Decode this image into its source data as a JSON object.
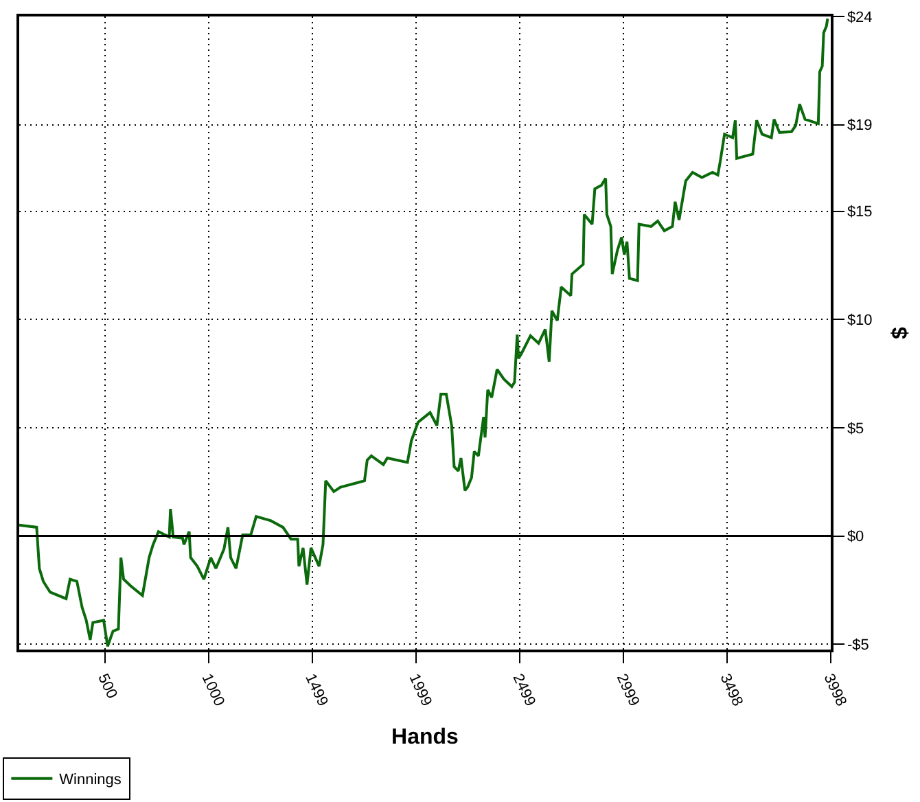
{
  "chart_data": {
    "type": "line",
    "xlabel": "Hands",
    "ylabel": "$",
    "xlim": [
      87,
      3998
    ],
    "xticks": [
      500,
      1000,
      1499,
      1999,
      2499,
      2999,
      3498,
      3998
    ],
    "ylim": [
      -5.25,
      24
    ],
    "yticks": [
      {
        "value": -5,
        "label": "-$5"
      },
      {
        "value": 0,
        "label": "$0"
      },
      {
        "value": 5,
        "label": "$5"
      },
      {
        "value": 10,
        "label": "$10"
      },
      {
        "value": 15,
        "label": "$15"
      },
      {
        "value": 19,
        "label": "$19"
      },
      {
        "value": 24,
        "label": "$24"
      }
    ],
    "grid": true,
    "legend": "bottom left",
    "line_style": "solid",
    "marker": "none",
    "ref_lines": [
      {
        "axis": "y",
        "value": 0,
        "color": "#000000"
      }
    ],
    "series": [
      {
        "name": "Winnings",
        "color": "#0b6a0b",
        "x": [
          87,
          171,
          184,
          203,
          236,
          313,
          332,
          365,
          390,
          410,
          429,
          442,
          494,
          513,
          539,
          565,
          577,
          590,
          623,
          681,
          713,
          732,
          758,
          810,
          816,
          829,
          874,
          881,
          906,
          913,
          945,
          977,
          1010,
          1035,
          1074,
          1093,
          1106,
          1132,
          1164,
          1203,
          1229,
          1300,
          1358,
          1397,
          1429,
          1435,
          1455,
          1474,
          1493,
          1532,
          1551,
          1564,
          1603,
          1635,
          1751,
          1764,
          1784,
          1842,
          1861,
          1958,
          1977,
          2009,
          2067,
          2100,
          2119,
          2145,
          2171,
          2183,
          2203,
          2216,
          2235,
          2248,
          2267,
          2280,
          2300,
          2325,
          2332,
          2345,
          2364,
          2390,
          2422,
          2461,
          2474,
          2487,
          2493,
          2506,
          2551,
          2590,
          2622,
          2641,
          2654,
          2680,
          2699,
          2745,
          2751,
          2805,
          2810,
          2848,
          2861,
          2893,
          2913,
          2919,
          2938,
          2945,
          2970,
          2990,
          3003,
          3016,
          3028,
          3067,
          3074,
          3132,
          3164,
          3196,
          3235,
          3248,
          3267,
          3299,
          3332,
          3377,
          3428,
          3454,
          3467,
          3486,
          3525,
          3538,
          3545,
          3622,
          3641,
          3667,
          3712,
          3725,
          3751,
          3809,
          3829,
          3848,
          3874,
          3938,
          3945,
          3957,
          3964,
          3977,
          3983
        ],
        "values": [
          0.5,
          0.4,
          -1.5,
          -2.1,
          -2.6,
          -2.9,
          -2.0,
          -2.1,
          -3.3,
          -3.9,
          -4.8,
          -4.0,
          -3.9,
          -5.1,
          -4.4,
          -4.3,
          -1.0,
          -2.0,
          -2.3,
          -2.75,
          -1.0,
          -0.4,
          0.2,
          -0.05,
          1.25,
          -0.05,
          -0.1,
          -0.4,
          0.2,
          -1.0,
          -1.4,
          -2.0,
          -1.0,
          -1.5,
          -0.6,
          0.4,
          -1.0,
          -1.5,
          0.05,
          0.05,
          0.9,
          0.7,
          0.4,
          -0.15,
          -0.15,
          -1.4,
          -0.55,
          -2.25,
          -0.55,
          -1.4,
          -0.4,
          2.55,
          2.05,
          2.25,
          2.55,
          3.5,
          3.7,
          3.3,
          3.6,
          3.4,
          4.4,
          5.25,
          5.7,
          5.1,
          6.55,
          6.55,
          5.1,
          3.2,
          3.0,
          3.6,
          2.1,
          2.25,
          2.7,
          3.9,
          3.7,
          5.5,
          4.55,
          6.75,
          6.4,
          7.7,
          7.25,
          6.9,
          7.1,
          9.3,
          8.2,
          8.4,
          9.25,
          8.9,
          9.55,
          8.05,
          10.4,
          9.95,
          11.5,
          11.1,
          12.1,
          12.55,
          14.85,
          14.4,
          16.04,
          16.2,
          16.52,
          14.85,
          14.3,
          12.1,
          13.2,
          13.8,
          13.0,
          13.6,
          11.9,
          11.8,
          14.4,
          14.3,
          14.55,
          14.1,
          14.3,
          15.44,
          14.6,
          16.4,
          16.8,
          16.56,
          16.8,
          16.68,
          17.4,
          18.56,
          18.4,
          19.2,
          17.44,
          17.64,
          19.2,
          18.56,
          18.4,
          19.25,
          18.64,
          18.68,
          18.96,
          19.95,
          19.25,
          19.05,
          21.45,
          21.7,
          23.25,
          23.55,
          23.9
        ]
      }
    ]
  }
}
